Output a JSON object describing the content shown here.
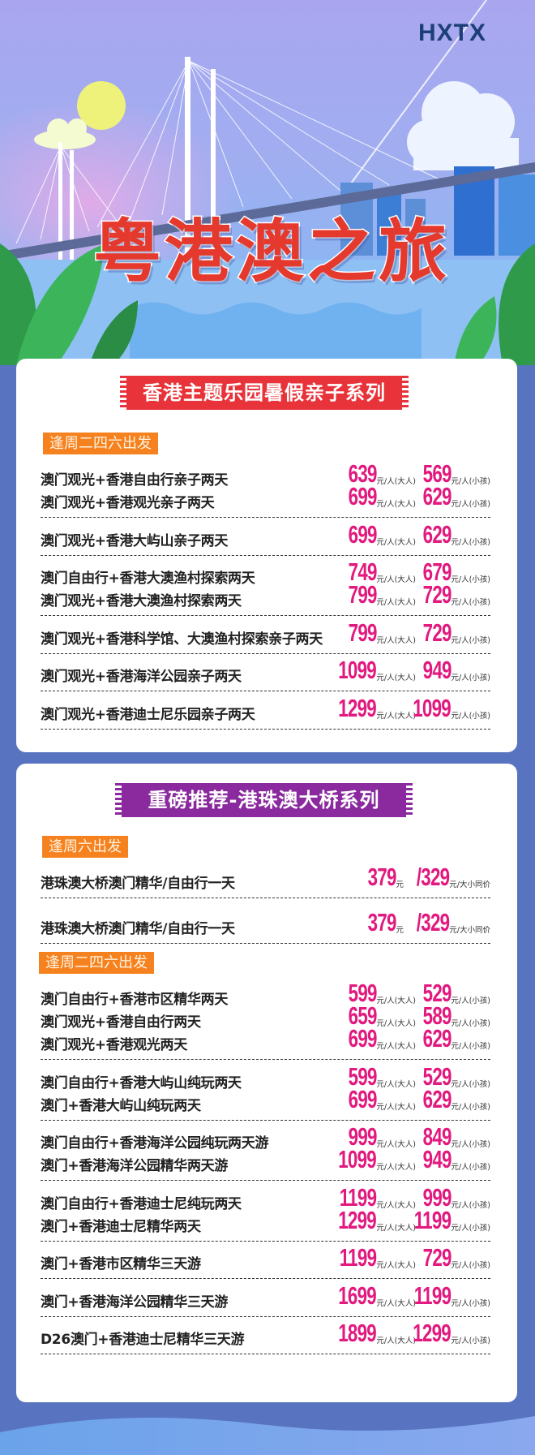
{
  "header": {
    "logo": "HXTX",
    "title": "粤港澳之旅"
  },
  "units": {
    "adult": "元/人(大人)",
    "child": "元/人(小孩)",
    "yuan": "元",
    "same_price": "元/大小同价"
  },
  "colors": {
    "page_bg": "#5873c0",
    "price": "#e2197f",
    "tag": "#f5821f",
    "banner_1": "#e8333a",
    "banner_2": "#8a2a9e",
    "title": "#e5392d"
  },
  "sections": [
    {
      "title": "香港主题乐园暑假亲子系列",
      "departures": [
        {
          "tag": "逢周二四六出发",
          "groups": [
            [
              {
                "name": "澳门观光+香港自由行亲子两天",
                "adult": "639",
                "child": "569"
              },
              {
                "name": "澳门观光+香港观光亲子两天",
                "adult": "699",
                "child": "629"
              }
            ],
            [
              {
                "name": "澳门观光+香港大屿山亲子两天",
                "adult": "699",
                "child": "629"
              }
            ],
            [
              {
                "name": "澳门自由行+香港大澳渔村探索两天",
                "adult": "749",
                "child": "679"
              },
              {
                "name": "澳门观光+香港大澳渔村探索两天",
                "adult": "799",
                "child": "729"
              }
            ],
            [
              {
                "name": "澳门观光+香港科学馆、大澳渔村探索亲子两天",
                "adult": "799",
                "child": "729"
              }
            ],
            [
              {
                "name": "澳门观光+香港海洋公园亲子两天",
                "adult": "1099",
                "child": "949"
              }
            ],
            [
              {
                "name": "澳门观光+香港迪士尼乐园亲子两天",
                "adult": "1299",
                "child": "1099"
              }
            ]
          ]
        }
      ]
    },
    {
      "title": "重磅推荐-港珠澳大桥系列",
      "departures": [
        {
          "tag": "逢周六出发",
          "groups": [
            [
              {
                "name": "港珠澳大桥澳门精华/自由行一天",
                "adult": "379",
                "child": "/329",
                "same": true
              }
            ],
            [
              {
                "name": "港珠澳大桥澳门精华/自由行一天",
                "adult": "379",
                "child": "/329",
                "same": true
              }
            ]
          ]
        },
        {
          "tag": "逢周二四六出发",
          "groups": [
            [
              {
                "name": "澳门自由行+香港市区精华两天",
                "adult": "599",
                "child": "529"
              },
              {
                "name": "澳门观光+香港自由行两天",
                "adult": "659",
                "child": "589"
              },
              {
                "name": "澳门观光+香港观光两天",
                "adult": "699",
                "child": "629"
              }
            ],
            [
              {
                "name": "澳门自由行+香港大屿山纯玩两天",
                "adult": "599",
                "child": "529"
              },
              {
                "name": "澳门+香港大屿山纯玩两天",
                "adult": "699",
                "child": "629"
              }
            ],
            [
              {
                "name": "澳门自由行+香港海洋公园纯玩两天游",
                "adult": "999",
                "child": "849"
              },
              {
                "name": "澳门+香港海洋公园精华两天游",
                "adult": "1099",
                "child": "949"
              }
            ],
            [
              {
                "name": "澳门自由行+香港迪士尼纯玩两天",
                "adult": "1199",
                "child": "999"
              },
              {
                "name": "澳门+香港迪士尼精华两天",
                "adult": "1299",
                "child": "1199"
              }
            ],
            [
              {
                "name": "澳门+香港市区精华三天游",
                "adult": "1199",
                "child": "729"
              }
            ],
            [
              {
                "name": "澳门+香港海洋公园精华三天游",
                "adult": "1699",
                "child": "1199"
              }
            ],
            [
              {
                "name": "D26澳门+香港迪士尼精华三天游",
                "adult": "1899",
                "child": "1299"
              }
            ]
          ]
        }
      ]
    }
  ]
}
